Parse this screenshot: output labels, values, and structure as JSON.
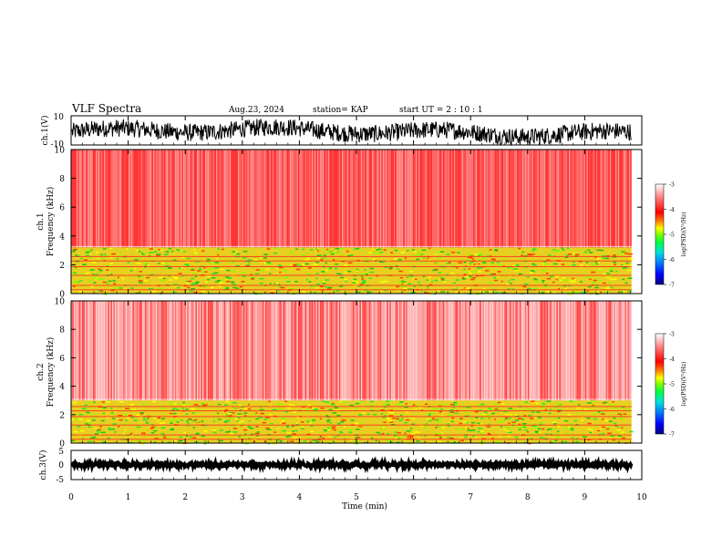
{
  "header": {
    "title": "VLF Spectra",
    "date": "Aug.23, 2024",
    "station": "station= KAP",
    "start": "start  UT =   2 : 10 : 1"
  },
  "colors": {
    "waveform": "#000000",
    "colorbar": [
      "#000080",
      "#0000ff",
      "#0080ff",
      "#00e0e0",
      "#00ff40",
      "#80ff00",
      "#ffff00",
      "#ff8000",
      "#ff0000",
      "#ff6060",
      "#ffc0c0",
      "#ffffff"
    ]
  },
  "chart_data": [
    {
      "type": "line",
      "panel": "ch1-waveform",
      "ylabel": "ch.1(V)",
      "ylim": [
        -10,
        10
      ],
      "yticks": [
        "10",
        "-10"
      ],
      "xlim": [
        0,
        10
      ],
      "data_xlim": [
        0,
        9.82
      ],
      "description_values": {
        "mean": -1,
        "amplitude": 6
      }
    },
    {
      "type": "heatmap",
      "panel": "ch1-spectrogram",
      "ylabel": "ch.1\nFrequency (kHz)",
      "ylim": [
        0,
        10
      ],
      "yticks": [
        "0",
        "2",
        "4",
        "6",
        "8",
        "10"
      ],
      "xlim": [
        0,
        10
      ],
      "data_xlim": [
        0,
        9.82
      ],
      "colorbar": {
        "label": "log(PSD)(V²/Hz)",
        "range": [
          -7,
          -3
        ],
        "ticks": [
          "-3",
          "-4",
          "-5",
          "-6",
          "-7"
        ]
      },
      "bands_khz": [
        {
          "from": 0,
          "to": 3.2,
          "level": "green-yellow"
        },
        {
          "from": 3.2,
          "to": 10,
          "level": "red"
        }
      ]
    },
    {
      "type": "heatmap",
      "panel": "ch2-spectrogram",
      "ylabel": "ch.2\nFrequency (kHz)",
      "ylim": [
        0,
        10
      ],
      "yticks": [
        "0",
        "2",
        "4",
        "6",
        "8",
        "10"
      ],
      "xlim": [
        0,
        10
      ],
      "data_xlim": [
        0,
        9.82
      ],
      "colorbar": {
        "label": "log(PSD)(V²/Hz)",
        "range": [
          -7,
          -3
        ],
        "ticks": [
          "-3",
          "-4",
          "-5",
          "-6",
          "-7"
        ]
      },
      "bands_khz": [
        {
          "from": 0,
          "to": 3.0,
          "level": "green-yellow"
        },
        {
          "from": 3.0,
          "to": 10,
          "level": "light-red"
        }
      ]
    },
    {
      "type": "line",
      "panel": "ch3-waveform",
      "ylabel": "ch.3(V)",
      "ylim": [
        -5,
        5
      ],
      "yticks": [
        "5",
        "0",
        "-5"
      ],
      "xlim": [
        0,
        10
      ],
      "data_xlim": [
        0,
        9.82
      ],
      "description_values": {
        "mean": 0.1,
        "amplitude": 0.6
      },
      "xlabel": "Time (min)",
      "xticks": [
        "0",
        "1",
        "2",
        "3",
        "4",
        "5",
        "6",
        "7",
        "8",
        "9",
        "10"
      ]
    }
  ]
}
